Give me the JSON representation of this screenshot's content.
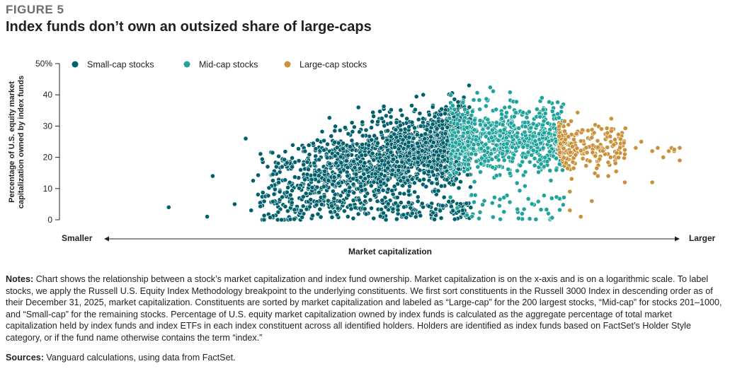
{
  "figure_label": "FIGURE 5",
  "title": "Index funds don’t own an outsized share of large-caps",
  "notes_label": "Notes:",
  "notes_text": "Chart shows the relationship between a stock’s market capitalization and index fund ownership. Market capitalization is on the x-axis and is on a logarithmic scale. To label stocks, we apply the Russell U.S. Equity Index Methodology breakpoint to the underlying constituents. We first sort constituents in the Russell 3000 Index in descending order as of their December 31, 2025, market capitalization. Constituents are sorted by market capitalization and labeled as “Large-cap” for the 200 largest stocks, “Mid-cap” for stocks 201–1000, and “Small-cap” for the remaining stocks. Percentage of U.S. equity market capitalization owned by index funds is calculated as the aggregate percentage of total market capitalization held by index funds and index ETFs in each index constituent across all identified holders. Holders are identified as index funds based on FactSet’s Holder Style category, or if the fund name otherwise contains the term “index.”",
  "sources_label": "Sources:",
  "sources_text": "Vanguard calculations, using data from FactSet.",
  "chart_data": {
    "type": "scatter",
    "xscale": "log",
    "ylabel": "Percentage of U.S. equity market\ncapitalization owned by index funds",
    "xlabel": "Market capitalization",
    "x_left_label": "Smaller",
    "x_right_label": "Larger",
    "arrow_glyph": "←——————————————————————————————————————————————————————————————————————————————————————→",
    "ylim": [
      0,
      50
    ],
    "yticks": [
      "0",
      "10",
      "20",
      "30",
      "40",
      "50%"
    ],
    "ytick_values": [
      0,
      10,
      20,
      30,
      40,
      50
    ],
    "legend_position": "top-left",
    "x_range_relative": [
      0,
      1
    ],
    "series": [
      {
        "name": "Small-cap stocks",
        "color": "#00606b",
        "count": 2000,
        "x_range": [
          0.0,
          0.62
        ],
        "approx_center": 17,
        "approx_max": 44,
        "outliers": [
          [
            0.07,
            4
          ],
          [
            0.14,
            1
          ],
          [
            0.15,
            14
          ],
          [
            0.21,
            26
          ],
          [
            0.19,
            5
          ],
          [
            0.22,
            3
          ],
          [
            0.25,
            17
          ]
        ]
      },
      {
        "name": "Mid-cap stocks",
        "color": "#1fa39b",
        "count": 800,
        "x_range": [
          0.58,
          0.79
        ],
        "approx_center": 26,
        "approx_max": 41
      },
      {
        "name": "Large-cap stocks",
        "color": "#c9913a",
        "count": 200,
        "x_range": [
          0.78,
          1.0
        ],
        "approx_center": 24,
        "approx_max": 32,
        "outliers": [
          [
            0.8,
            3
          ],
          [
            0.82,
            1
          ],
          [
            0.84,
            6
          ],
          [
            0.8,
            9
          ],
          [
            0.95,
            12
          ],
          [
            0.99,
            22
          ],
          [
            1.0,
            19
          ]
        ]
      }
    ]
  }
}
